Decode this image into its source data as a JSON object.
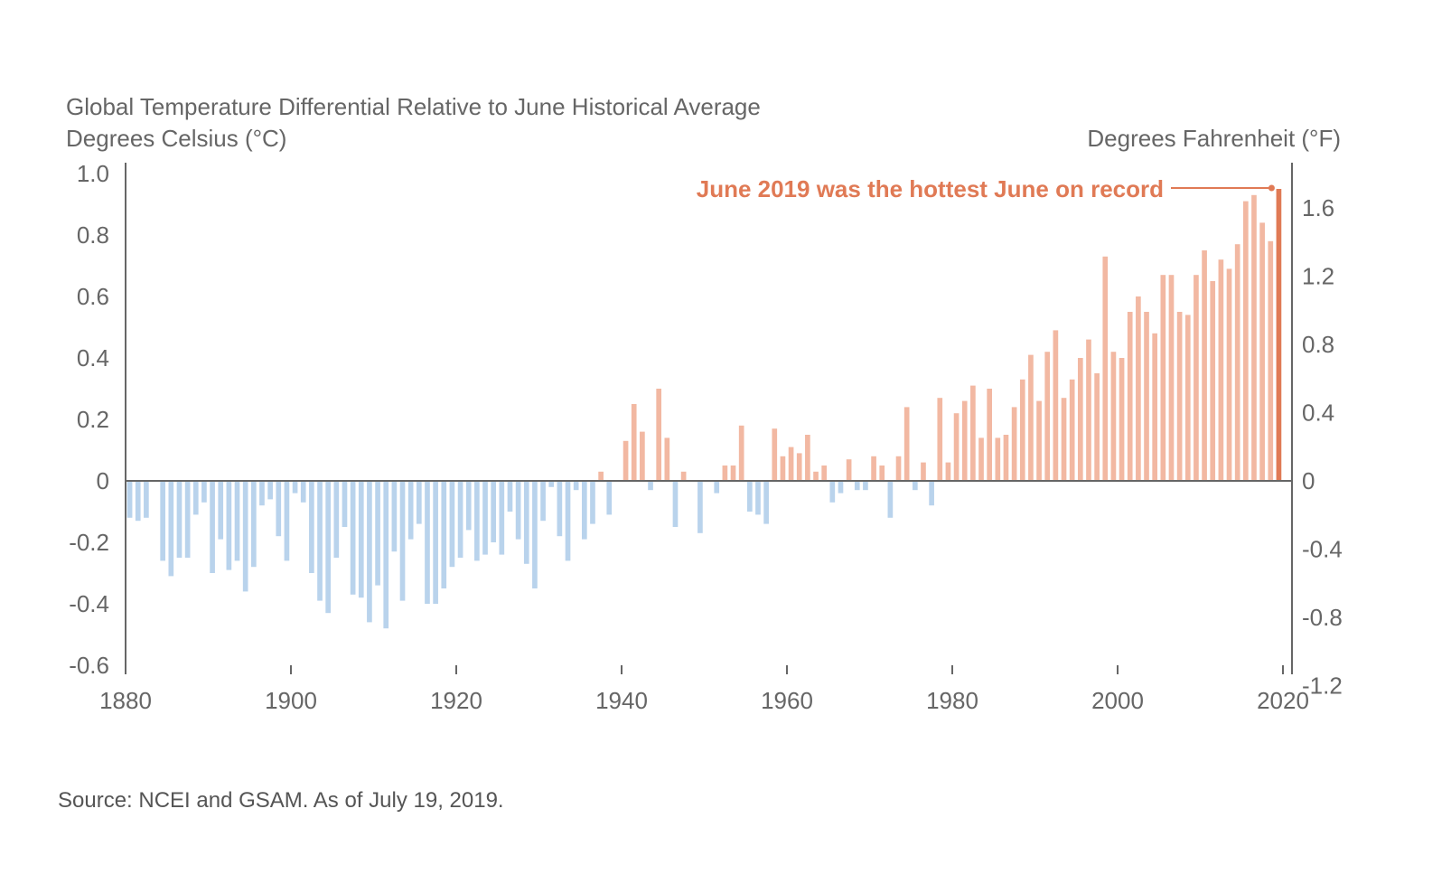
{
  "source_note": "Source: NCEI and GSAM. As of July 19, 2019.",
  "colors": {
    "negative": "#b9d3ec",
    "positive": "#f2b8a2",
    "highlight": "#e07a55",
    "axis": "#666666",
    "text": "#666666"
  },
  "chart_data": {
    "type": "bar",
    "title": "Global Temperature Differential Relative to June Historical Average",
    "ylabel": "Degrees Celsius (°C)",
    "y2label": "Degrees Fahrenheit (°F)",
    "annotation": "June 2019 was the hottest June on record",
    "highlight_x": 2019,
    "xlim": [
      1880,
      2020
    ],
    "ylim": [
      -0.6,
      1.0
    ],
    "x_ticks": [
      "1880",
      "1900",
      "1920",
      "1940",
      "1960",
      "1980",
      "2000",
      "2020"
    ],
    "y_ticks": [
      "1.0",
      "0.8",
      "0.6",
      "0.4",
      "0.2",
      "0",
      "-0.2",
      "-0.4",
      "-0.6"
    ],
    "y2_ticks": [
      "1.6",
      "1.2",
      "0.8",
      "0.4",
      "0",
      "-0.4",
      "-0.8",
      "-1.2"
    ],
    "x": [
      1880,
      1881,
      1882,
      1883,
      1884,
      1885,
      1886,
      1887,
      1888,
      1889,
      1890,
      1891,
      1892,
      1893,
      1894,
      1895,
      1896,
      1897,
      1898,
      1899,
      1900,
      1901,
      1902,
      1903,
      1904,
      1905,
      1906,
      1907,
      1908,
      1909,
      1910,
      1911,
      1912,
      1913,
      1914,
      1915,
      1916,
      1917,
      1918,
      1919,
      1920,
      1921,
      1922,
      1923,
      1924,
      1925,
      1926,
      1927,
      1928,
      1929,
      1930,
      1931,
      1932,
      1933,
      1934,
      1935,
      1936,
      1937,
      1938,
      1939,
      1940,
      1941,
      1942,
      1943,
      1944,
      1945,
      1946,
      1947,
      1948,
      1949,
      1950,
      1951,
      1952,
      1953,
      1954,
      1955,
      1956,
      1957,
      1958,
      1959,
      1960,
      1961,
      1962,
      1963,
      1964,
      1965,
      1966,
      1967,
      1968,
      1969,
      1970,
      1971,
      1972,
      1973,
      1974,
      1975,
      1976,
      1977,
      1978,
      1979,
      1980,
      1981,
      1982,
      1983,
      1984,
      1985,
      1986,
      1987,
      1988,
      1989,
      1990,
      1991,
      1992,
      1993,
      1994,
      1995,
      1996,
      1997,
      1998,
      1999,
      2000,
      2001,
      2002,
      2003,
      2004,
      2005,
      2006,
      2007,
      2008,
      2009,
      2010,
      2011,
      2012,
      2013,
      2014,
      2015,
      2016,
      2017,
      2018,
      2019
    ],
    "values": [
      -0.12,
      -0.13,
      -0.12,
      0,
      -0.26,
      -0.31,
      -0.25,
      -0.25,
      -0.11,
      -0.07,
      -0.3,
      -0.19,
      -0.29,
      -0.26,
      -0.36,
      -0.28,
      -0.08,
      -0.06,
      -0.18,
      -0.26,
      -0.04,
      -0.07,
      -0.3,
      -0.39,
      -0.43,
      -0.25,
      -0.15,
      -0.37,
      -0.38,
      -0.46,
      -0.34,
      -0.48,
      -0.23,
      -0.39,
      -0.19,
      -0.14,
      -0.4,
      -0.4,
      -0.35,
      -0.28,
      -0.25,
      -0.16,
      -0.26,
      -0.24,
      -0.2,
      -0.24,
      -0.1,
      -0.19,
      -0.27,
      -0.35,
      -0.13,
      -0.02,
      -0.18,
      -0.26,
      -0.03,
      -0.19,
      -0.14,
      0.03,
      -0.11,
      0,
      0.13,
      0.25,
      0.16,
      -0.03,
      0.3,
      0.14,
      -0.15,
      0.03,
      0,
      -0.17,
      0,
      -0.04,
      0.05,
      0.05,
      0.18,
      -0.1,
      -0.11,
      -0.14,
      0.17,
      0.08,
      0.11,
      0.09,
      0.15,
      0.03,
      0.05,
      -0.07,
      -0.04,
      0.07,
      -0.03,
      -0.03,
      0.08,
      0.05,
      -0.12,
      0.08,
      0.24,
      -0.03,
      0.06,
      -0.08,
      0.27,
      0.06,
      0.22,
      0.26,
      0.31,
      0.14,
      0.3,
      0.14,
      0.15,
      0.24,
      0.33,
      0.41,
      0.26,
      0.42,
      0.49,
      0.27,
      0.33,
      0.4,
      0.46,
      0.35,
      0.73,
      0.42,
      0.4,
      0.55,
      0.6,
      0.55,
      0.48,
      0.67,
      0.67,
      0.55,
      0.54,
      0.67,
      0.75,
      0.65,
      0.72,
      0.69,
      0.77,
      0.91,
      0.93,
      0.84,
      0.78,
      0.95
    ]
  }
}
